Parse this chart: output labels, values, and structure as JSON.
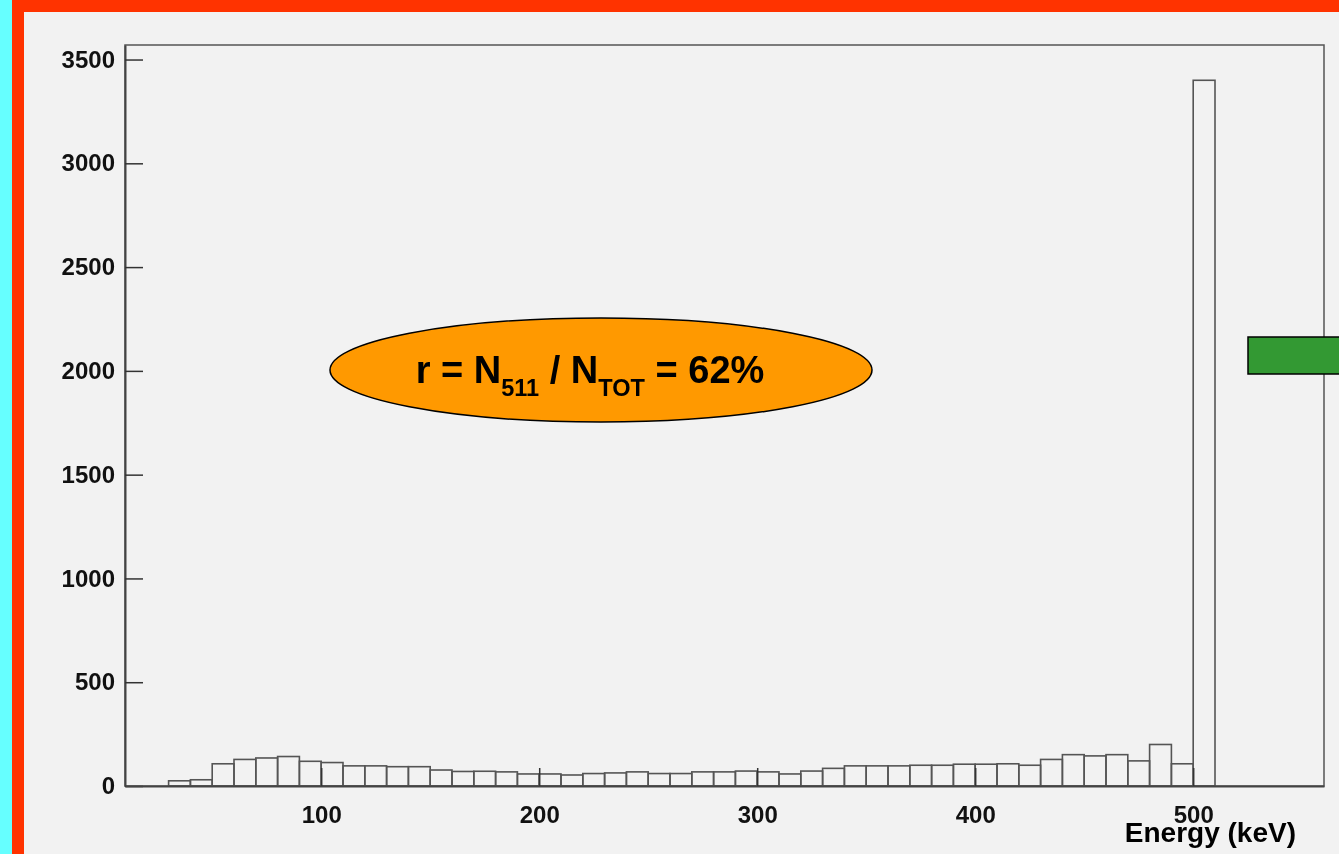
{
  "chart_data": {
    "type": "histogram",
    "xlabel": "Energy (keV)",
    "annotations": [
      "r = N$_{511}$ / N$_{TOT}$ = 62%"
    ],
    "bins": [
      30,
      40,
      50,
      60,
      70,
      80,
      90,
      100,
      110,
      120,
      130,
      140,
      150,
      160,
      170,
      180,
      190,
      200,
      210,
      220,
      230,
      240,
      250,
      260,
      270,
      280,
      290,
      300,
      310,
      320,
      330,
      340,
      350,
      360,
      370,
      380,
      390,
      400,
      410,
      420,
      430,
      440,
      450,
      460,
      470,
      480,
      490,
      500,
      510
    ],
    "values": [
      25,
      30,
      107,
      128,
      135,
      142,
      119,
      113,
      97,
      97,
      93,
      93,
      77,
      70,
      71,
      68,
      58,
      58,
      53,
      60,
      63,
      68,
      60,
      60,
      68,
      68,
      72,
      68,
      58,
      72,
      85,
      97,
      97,
      97,
      100,
      100,
      105,
      105,
      107,
      100,
      128,
      151,
      145,
      151,
      121,
      200,
      107,
      3400
    ],
    "color": "#555555",
    "xlim": [
      10,
      560
    ],
    "ylim": [
      0,
      3570
    ],
    "xticks": [
      100,
      200,
      300,
      400,
      500
    ],
    "yticks": [
      0,
      500,
      1000,
      1500,
      2000,
      2500,
      3000,
      3500
    ]
  }
}
